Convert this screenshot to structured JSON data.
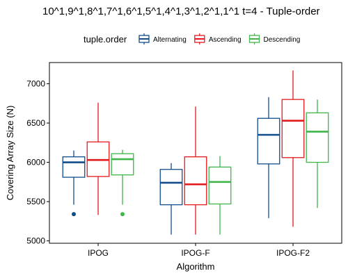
{
  "chart_data": {
    "type": "boxplot",
    "title": "10^1,9^1,8^1,7^1,6^1,5^1,4^1,3^1,2^1,1^1 t=4 - Tuple-order",
    "xlabel": "Algorithm",
    "ylabel": "Covering Array Size (N)",
    "ylim": [
      4970,
      7270
    ],
    "yticks": [
      5000,
      5500,
      6000,
      6500,
      7000
    ],
    "categories": [
      "IPOG",
      "IPOG-F",
      "IPOG-F2"
    ],
    "legend": {
      "title": "tuple.order",
      "position": "top"
    },
    "series": [
      {
        "name": "Alternating",
        "color": "#114d8c",
        "boxes": [
          {
            "category": "IPOG",
            "min": 5460,
            "q1": 5810,
            "median": 6000,
            "q3": 6070,
            "max": 6150,
            "outliers": [
              5340
            ]
          },
          {
            "category": "IPOG-F",
            "min": 5080,
            "q1": 5460,
            "median": 5740,
            "q3": 5910,
            "max": 5990,
            "outliers": []
          },
          {
            "category": "IPOG-F2",
            "min": 5290,
            "q1": 5980,
            "median": 6350,
            "q3": 6560,
            "max": 6830,
            "outliers": []
          }
        ]
      },
      {
        "name": "Ascending",
        "color": "#e31a1c",
        "boxes": [
          {
            "category": "IPOG",
            "min": 5330,
            "q1": 5820,
            "median": 6030,
            "q3": 6260,
            "max": 6760,
            "outliers": []
          },
          {
            "category": "IPOG-F",
            "min": 5080,
            "q1": 5460,
            "median": 5720,
            "q3": 6070,
            "max": 6710,
            "outliers": []
          },
          {
            "category": "IPOG-F2",
            "min": 5180,
            "q1": 6060,
            "median": 6530,
            "q3": 6800,
            "max": 7170,
            "outliers": []
          }
        ]
      },
      {
        "name": "Descending",
        "color": "#3fb54a",
        "boxes": [
          {
            "category": "IPOG",
            "min": 5460,
            "q1": 5840,
            "median": 6040,
            "q3": 6110,
            "max": 6160,
            "outliers": [
              5340
            ]
          },
          {
            "category": "IPOG-F",
            "min": 5080,
            "q1": 5470,
            "median": 5750,
            "q3": 5940,
            "max": 6080,
            "outliers": []
          },
          {
            "category": "IPOG-F2",
            "min": 5420,
            "q1": 6000,
            "median": 6390,
            "q3": 6630,
            "max": 6800,
            "outliers": []
          }
        ]
      }
    ]
  }
}
